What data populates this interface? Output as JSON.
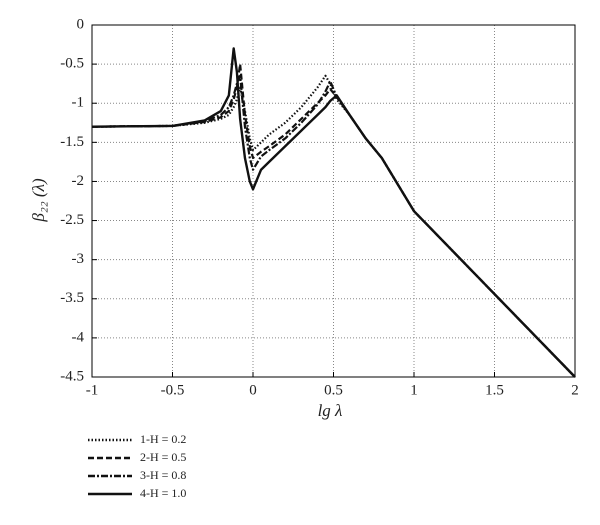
{
  "chart_data": {
    "type": "line",
    "xlabel": "lg λ",
    "ylabel": "β₂₂ (λ)",
    "x": [
      -1,
      -0.5,
      -0.3,
      -0.2,
      -0.15,
      -0.12,
      -0.1,
      -0.08,
      -0.05,
      -0.02,
      0,
      0.05,
      0.1,
      0.2,
      0.3,
      0.4,
      0.45,
      0.48,
      0.52,
      0.6,
      0.7,
      0.8,
      1,
      1.5,
      2
    ],
    "series": [
      {
        "name": "1-H = 0.2",
        "color": "#111111",
        "dash": "1.5 2",
        "values": [
          -1.3,
          -1.29,
          -1.25,
          -1.2,
          -1.15,
          -1.05,
          -0.95,
          -0.8,
          -1.1,
          -1.45,
          -1.6,
          -1.5,
          -1.4,
          -1.25,
          -1.05,
          -0.8,
          -0.65,
          -0.75,
          -0.95,
          -1.15,
          -1.45,
          -1.7,
          -2.38,
          -3.44,
          -4.5
        ]
      },
      {
        "name": "2-H = 0.5",
        "color": "#111111",
        "dash": "6 3",
        "values": [
          -1.3,
          -1.29,
          -1.24,
          -1.18,
          -1.1,
          -0.95,
          -0.8,
          -0.5,
          -1.15,
          -1.55,
          -1.7,
          -1.62,
          -1.55,
          -1.4,
          -1.2,
          -1.0,
          -0.9,
          -0.82,
          -0.92,
          -1.15,
          -1.45,
          -1.7,
          -2.38,
          -3.44,
          -4.5
        ]
      },
      {
        "name": "3-H = 0.8",
        "color": "#111111",
        "dash": "7 2 2 2",
        "values": [
          -1.3,
          -1.29,
          -1.23,
          -1.15,
          -1.05,
          -0.9,
          -0.75,
          -0.65,
          -1.3,
          -1.7,
          -1.85,
          -1.68,
          -1.6,
          -1.45,
          -1.25,
          -1.02,
          -0.85,
          -0.72,
          -0.92,
          -1.15,
          -1.45,
          -1.7,
          -2.38,
          -3.44,
          -4.5
        ]
      },
      {
        "name": "4-H = 1.0",
        "color": "#111111",
        "dash": "none",
        "values": [
          -1.3,
          -1.29,
          -1.22,
          -1.1,
          -0.9,
          -0.3,
          -0.6,
          -1.2,
          -1.7,
          -2.0,
          -2.1,
          -1.85,
          -1.75,
          -1.55,
          -1.35,
          -1.15,
          -1.05,
          -0.97,
          -0.9,
          -1.15,
          -1.45,
          -1.7,
          -2.38,
          -3.44,
          -4.5
        ]
      }
    ],
    "xlim": [
      -1,
      2
    ],
    "ylim": [
      -4.5,
      0
    ],
    "xticks": [
      -1,
      -0.5,
      0,
      0.5,
      1,
      1.5,
      2
    ],
    "yticks": [
      0,
      -0.5,
      -1,
      -1.5,
      -2,
      -2.5,
      -3,
      -3.5,
      -4,
      -4.5
    ],
    "grid": true,
    "legend": "bottom-left"
  }
}
